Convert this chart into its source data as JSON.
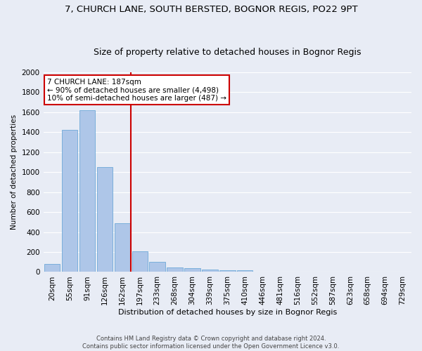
{
  "title_line1": "7, CHURCH LANE, SOUTH BERSTED, BOGNOR REGIS, PO22 9PT",
  "title_line2": "Size of property relative to detached houses in Bognor Regis",
  "xlabel": "Distribution of detached houses by size in Bognor Regis",
  "ylabel": "Number of detached properties",
  "footnote1": "Contains HM Land Registry data © Crown copyright and database right 2024.",
  "footnote2": "Contains public sector information licensed under the Open Government Licence v3.0.",
  "categories": [
    "20sqm",
    "55sqm",
    "91sqm",
    "126sqm",
    "162sqm",
    "197sqm",
    "233sqm",
    "268sqm",
    "304sqm",
    "339sqm",
    "375sqm",
    "410sqm",
    "446sqm",
    "481sqm",
    "516sqm",
    "552sqm",
    "587sqm",
    "623sqm",
    "658sqm",
    "694sqm",
    "729sqm"
  ],
  "values": [
    80,
    1420,
    1620,
    1050,
    490,
    205,
    105,
    45,
    35,
    25,
    20,
    15,
    0,
    0,
    0,
    0,
    0,
    0,
    0,
    0,
    0
  ],
  "bar_color": "#aec6e8",
  "bar_edge_color": "#5a9fd4",
  "vline_x_idx": 4.5,
  "vline_color": "#cc0000",
  "annotation_text": "7 CHURCH LANE: 187sqm\n← 90% of detached houses are smaller (4,498)\n10% of semi-detached houses are larger (487) →",
  "annotation_box_color": "#cc0000",
  "ylim": [
    0,
    2000
  ],
  "yticks": [
    0,
    200,
    400,
    600,
    800,
    1000,
    1200,
    1400,
    1600,
    1800,
    2000
  ],
  "fig_bg_color": "#e8ecf5",
  "axes_bg_color": "#e8ecf5",
  "grid_color": "#ffffff",
  "title_fontsize": 9.5,
  "subtitle_fontsize": 9
}
